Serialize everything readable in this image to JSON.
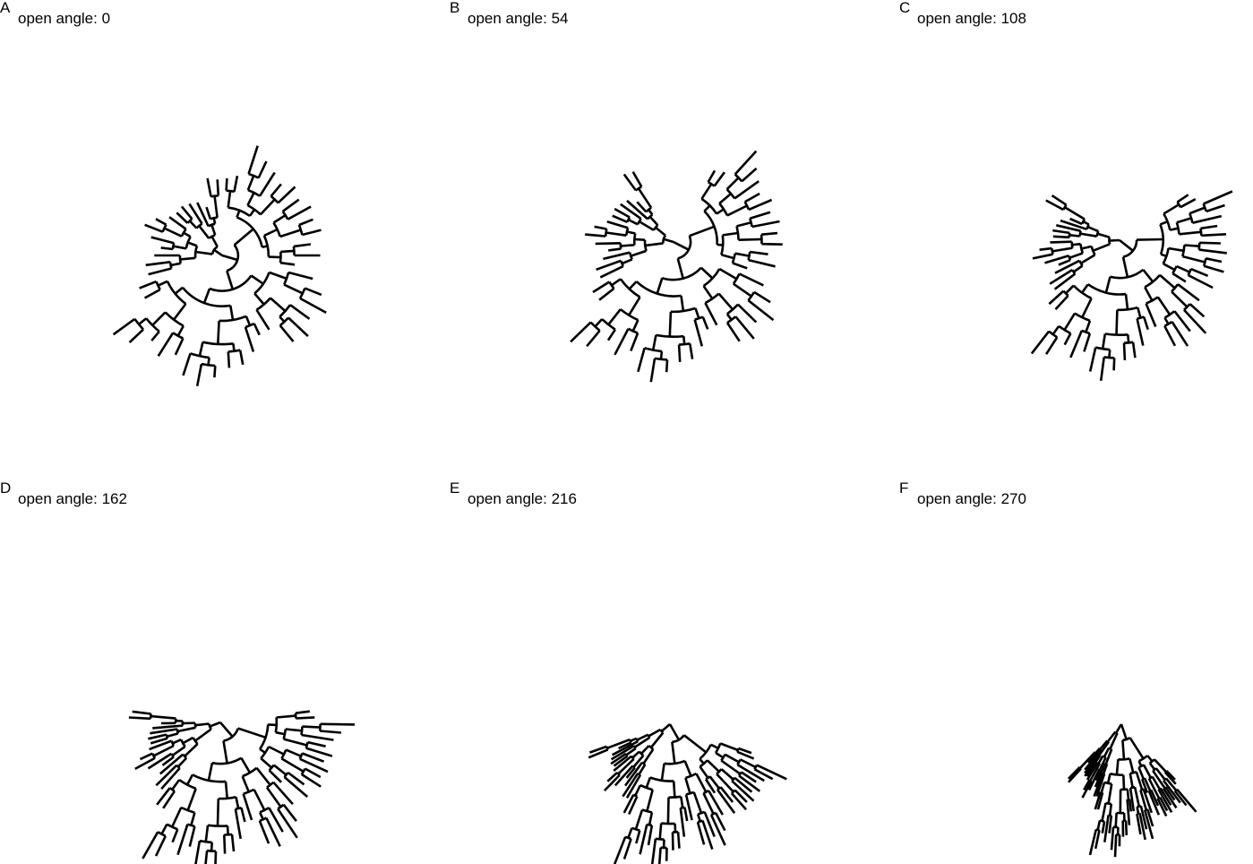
{
  "panels": [
    {
      "letter": "A",
      "title": "open angle: 0",
      "open_angle": 0
    },
    {
      "letter": "B",
      "title": "open angle: 54",
      "open_angle": 54
    },
    {
      "letter": "C",
      "title": "open angle: 108",
      "open_angle": 108
    },
    {
      "letter": "D",
      "title": "open angle: 162",
      "open_angle": 162
    },
    {
      "letter": "E",
      "title": "open angle: 216",
      "open_angle": 216
    },
    {
      "letter": "F",
      "title": "open angle: 270",
      "open_angle": 270
    }
  ]
}
